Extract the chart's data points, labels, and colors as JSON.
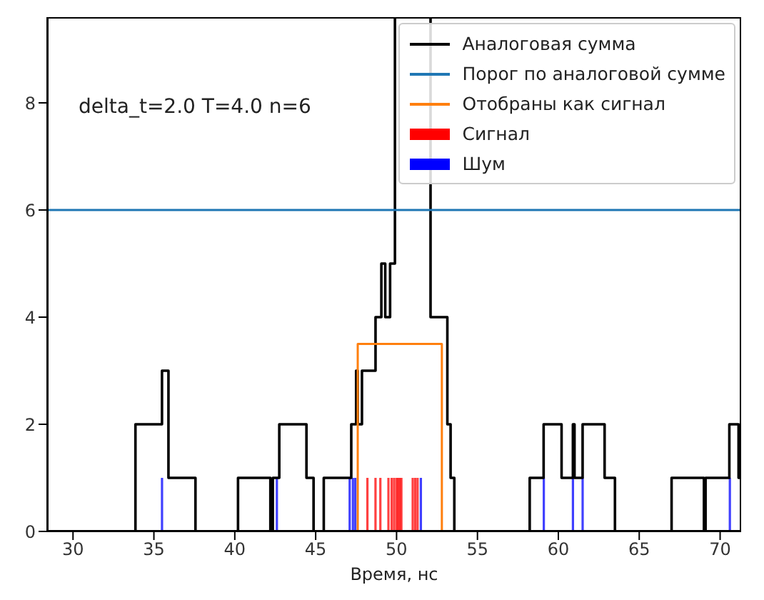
{
  "chart_data": {
    "type": "line",
    "xlabel": "Время, нс",
    "annotations": [
      "delta_t=2.0 T=4.0 n=6"
    ],
    "xlim": [
      28.4,
      71.3
    ],
    "ylim": [
      0,
      9.6
    ],
    "xticks": [
      30,
      35,
      40,
      45,
      50,
      55,
      60,
      65,
      70
    ],
    "yticks": [
      0,
      2,
      4,
      6,
      8
    ],
    "grid": false,
    "legend": "top right",
    "series": [
      {
        "name": "Аналоговая сумма",
        "type": "step",
        "color": "#000000",
        "x": [
          28.4,
          33.86,
          35.5,
          35.9,
          37.57,
          40.2,
          42.2,
          42.35,
          42.75,
          44.43,
          44.87,
          45.5,
          47.2,
          47.5,
          47.6,
          47.86,
          48.7,
          49.06,
          49.3,
          49.6,
          49.9,
          52.1,
          53.14,
          53.34,
          53.57,
          58.23,
          59.09,
          60.2,
          60.9,
          61.0,
          61.5,
          62.86,
          63.5,
          67.0,
          69.0,
          69.1,
          70.57,
          71.14,
          71.3
        ],
        "values": [
          0,
          2,
          3,
          1,
          0,
          1,
          0,
          1,
          2,
          1,
          0,
          1,
          2,
          3,
          2,
          3,
          4,
          5,
          4,
          5,
          9.6,
          4,
          2,
          1,
          0,
          1,
          2,
          1,
          2,
          1,
          2,
          1,
          0,
          1,
          0,
          1,
          2,
          1,
          1
        ]
      },
      {
        "name": "Порог по аналоговой сумме",
        "color": "#1f77b4",
        "x": [
          28.4,
          71.3
        ],
        "values": [
          6,
          6
        ]
      },
      {
        "name": "Отобраны как сигнал",
        "color": "#ff7f0e",
        "x": [
          47.6,
          47.6,
          52.8,
          52.8
        ],
        "values": [
          0,
          3.5,
          3.5,
          0
        ]
      },
      {
        "name": "Сигнал",
        "type": "bar",
        "color": "#ff0000",
        "x": [
          48.2,
          48.7,
          49.0,
          49.5,
          49.7,
          49.85,
          50.0,
          50.1,
          50.2,
          50.3,
          51.0,
          51.15,
          51.3
        ],
        "values": [
          1,
          1,
          1,
          1,
          1,
          1,
          1,
          1,
          1,
          1,
          1,
          1,
          1
        ]
      },
      {
        "name": "Шум",
        "type": "bar",
        "color": "#0000ff",
        "x": [
          35.5,
          42.6,
          47.1,
          47.3,
          47.45,
          51.5,
          59.1,
          60.9,
          61.5,
          70.6
        ],
        "values": [
          1,
          1,
          1,
          1,
          1,
          1,
          1,
          1,
          1,
          1
        ]
      }
    ]
  }
}
